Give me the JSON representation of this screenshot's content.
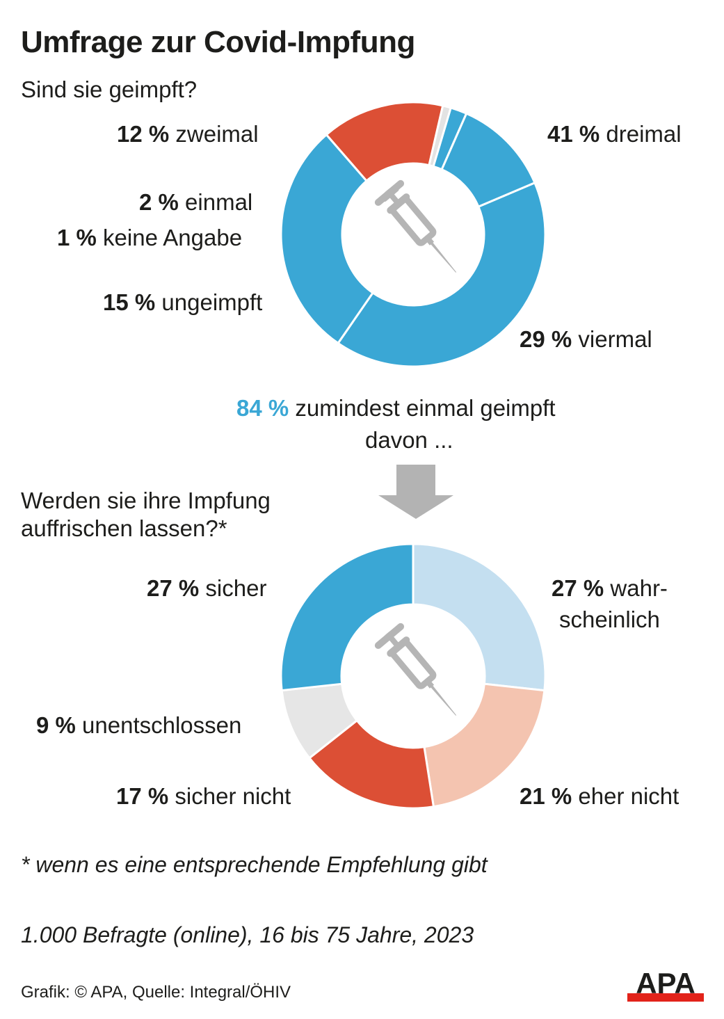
{
  "title": "Umfrage zur Covid-Impfung",
  "chart_data": [
    {
      "type": "pie",
      "subtype": "donut",
      "question": "Sind sie geimpft?",
      "unit": "%",
      "slices": [
        {
          "label": "dreimal",
          "value": 41,
          "color": "#3aa7d5"
        },
        {
          "label": "viermal",
          "value": 29,
          "color": "#3aa7d5"
        },
        {
          "label": "ungeimpft",
          "value": 15,
          "color": "#dc4f35"
        },
        {
          "label": "keine Angabe",
          "value": 1,
          "color": "#e3e3e3"
        },
        {
          "label": "einmal",
          "value": 2,
          "color": "#3aa7d5"
        },
        {
          "label": "zweimal",
          "value": 12,
          "color": "#3aa7d5"
        }
      ]
    },
    {
      "type": "pie",
      "subtype": "donut",
      "question": "Werden sie ihre Impfung auffrischen lassen?*",
      "unit": "%",
      "slices": [
        {
          "label": "wahr-scheinlich",
          "label_lines": [
            "wahr-",
            "scheinlich"
          ],
          "value": 27,
          "color": "#c4dff0"
        },
        {
          "label": "eher nicht",
          "value": 21,
          "color": "#f4c4b0"
        },
        {
          "label": "sicher nicht",
          "value": 17,
          "color": "#dc4f35"
        },
        {
          "label": "unentschlossen",
          "value": 9,
          "color": "#e6e6e6"
        },
        {
          "label": "sicher",
          "value": 27,
          "color": "#3aa7d5"
        }
      ]
    }
  ],
  "summary": {
    "value": "84 %",
    "text": "zumindest einmal geimpft",
    "line2": "davon ...",
    "color": "#3aa7d5"
  },
  "footnote": "* wenn es eine entsprechende Empfehlung gibt",
  "sample": "1.000 Befragte (online), 16 bis 75 Jahre, 2023",
  "source": "Grafik: © APA, Quelle: Integral/ÖHIV",
  "logo": "APA",
  "icons": {
    "center": "syringe-icon",
    "arrow": "arrow-down-icon"
  }
}
